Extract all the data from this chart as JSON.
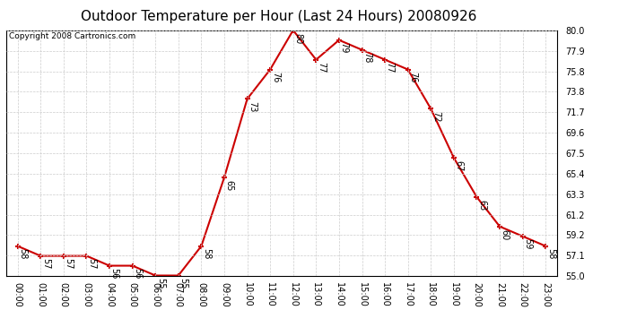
{
  "title": "Outdoor Temperature per Hour (Last 24 Hours) 20080926",
  "copyright": "Copyright 2008 Cartronics.com",
  "hours": [
    "00:00",
    "01:00",
    "02:00",
    "03:00",
    "04:00",
    "05:00",
    "06:00",
    "07:00",
    "08:00",
    "09:00",
    "10:00",
    "11:00",
    "12:00",
    "13:00",
    "14:00",
    "15:00",
    "16:00",
    "17:00",
    "18:00",
    "19:00",
    "20:00",
    "21:00",
    "22:00",
    "23:00"
  ],
  "temps": [
    58,
    57,
    57,
    57,
    56,
    56,
    55,
    55,
    58,
    65,
    73,
    76,
    80,
    77,
    79,
    78,
    77,
    76,
    72,
    67,
    63,
    60,
    59,
    58
  ],
  "line_color": "#cc0000",
  "marker": "+",
  "marker_size": 5,
  "marker_color": "#cc0000",
  "bg_color": "#ffffff",
  "grid_color": "#cccccc",
  "ylim": [
    55.0,
    80.0
  ],
  "yticks": [
    55.0,
    57.1,
    59.2,
    61.2,
    63.3,
    65.4,
    67.5,
    69.6,
    71.7,
    73.8,
    75.8,
    77.9,
    80.0
  ],
  "title_fontsize": 11,
  "copyright_fontsize": 6.5,
  "label_fontsize": 7,
  "annotation_fontsize": 7
}
